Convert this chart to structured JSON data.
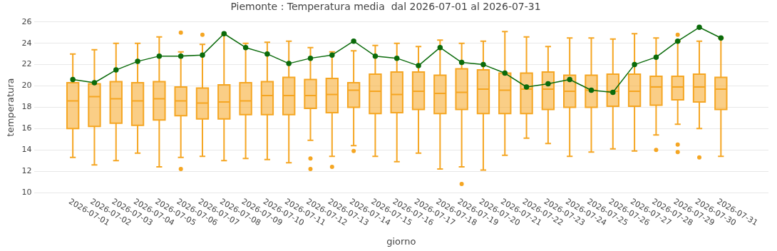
{
  "chart_data": {
    "type": "box",
    "title": "Piemonte : Temperatura media  dal 2026-07-01 al 2026-07-31",
    "xlabel": "giorno",
    "ylabel": "temperatura",
    "categories": [
      "2026-07-01",
      "2026-07-02",
      "2026-07-03",
      "2026-07-04",
      "2026-07-05",
      "2026-07-06",
      "2026-07-07",
      "2026-07-08",
      "2026-07-09",
      "2026-07-10",
      "2026-07-11",
      "2026-07-12",
      "2026-07-13",
      "2026-07-14",
      "2026-07-15",
      "2026-07-16",
      "2026-07-17",
      "2026-07-18",
      "2026-07-19",
      "2026-07-20",
      "2026-07-21",
      "2026-07-22",
      "2026-07-23",
      "2026-07-24",
      "2026-07-25",
      "2026-07-26",
      "2026-07-27",
      "2026-07-28",
      "2026-07-29",
      "2026-07-30",
      "2026-07-31"
    ],
    "series": [
      {
        "type": "box",
        "color": "#f5a623",
        "boxes": [
          {
            "low": 13.3,
            "q1": 16.0,
            "median": 18.6,
            "q3": 20.3,
            "high": 23.0
          },
          {
            "low": 12.6,
            "q1": 16.2,
            "median": 19.0,
            "q3": 20.2,
            "high": 23.4
          },
          {
            "low": 13.0,
            "q1": 16.5,
            "median": 18.8,
            "q3": 20.4,
            "high": 24.0
          },
          {
            "low": 13.7,
            "q1": 16.3,
            "median": 18.6,
            "q3": 20.3,
            "high": 24.0
          },
          {
            "low": 12.4,
            "q1": 16.8,
            "median": 18.8,
            "q3": 20.4,
            "high": 24.6
          },
          {
            "low": 13.3,
            "q1": 17.2,
            "median": 18.6,
            "q3": 19.9,
            "high": 23.2,
            "outliers": [
              25.0,
              12.2
            ]
          },
          {
            "low": 13.4,
            "q1": 16.9,
            "median": 18.4,
            "q3": 19.8,
            "high": 23.9,
            "outliers": [
              24.8
            ]
          },
          {
            "low": 13.0,
            "q1": 16.9,
            "median": 18.5,
            "q3": 20.1,
            "high": 24.8
          },
          {
            "low": 13.2,
            "q1": 17.3,
            "median": 18.6,
            "q3": 20.3,
            "high": 24.0
          },
          {
            "low": 13.1,
            "q1": 17.3,
            "median": 19.1,
            "q3": 20.4,
            "high": 24.1
          },
          {
            "low": 12.8,
            "q1": 17.3,
            "median": 19.1,
            "q3": 20.8,
            "high": 24.2
          },
          {
            "low": 14.9,
            "q1": 17.9,
            "median": 19.1,
            "q3": 20.6,
            "high": 23.6,
            "outliers": [
              13.2,
              12.2
            ]
          },
          {
            "low": 13.4,
            "q1": 17.5,
            "median": 19.2,
            "q3": 20.7,
            "high": 23.2,
            "outliers": [
              12.4
            ]
          },
          {
            "low": 14.4,
            "q1": 18.0,
            "median": 19.6,
            "q3": 20.3,
            "high": 23.3,
            "outliers": [
              13.9
            ]
          },
          {
            "low": 13.4,
            "q1": 17.4,
            "median": 19.5,
            "q3": 21.1,
            "high": 23.8
          },
          {
            "low": 12.9,
            "q1": 17.5,
            "median": 19.2,
            "q3": 21.3,
            "high": 24.0
          },
          {
            "low": 13.7,
            "q1": 17.8,
            "median": 19.5,
            "q3": 21.3,
            "high": 23.7
          },
          {
            "low": 12.2,
            "q1": 17.4,
            "median": 19.3,
            "q3": 21.0,
            "high": 24.3
          },
          {
            "low": 12.4,
            "q1": 17.8,
            "median": 19.4,
            "q3": 21.6,
            "high": 24.0,
            "outliers": [
              10.8
            ]
          },
          {
            "low": 12.1,
            "q1": 17.4,
            "median": 19.7,
            "q3": 21.5,
            "high": 24.2
          },
          {
            "low": 13.5,
            "q1": 17.4,
            "median": 19.6,
            "q3": 21.2,
            "high": 25.1
          },
          {
            "low": 15.1,
            "q1": 17.4,
            "median": 19.7,
            "q3": 21.2,
            "high": 24.6
          },
          {
            "low": 14.6,
            "q1": 17.8,
            "median": 19.7,
            "q3": 21.3,
            "high": 23.7
          },
          {
            "low": 13.4,
            "q1": 18.0,
            "median": 19.5,
            "q3": 21.0,
            "high": 24.5
          },
          {
            "low": 13.8,
            "q1": 18.0,
            "median": 19.6,
            "q3": 21.0,
            "high": 24.5
          },
          {
            "low": 14.1,
            "q1": 18.1,
            "median": 19.5,
            "q3": 21.1,
            "high": 24.4
          },
          {
            "low": 13.9,
            "q1": 18.1,
            "median": 19.5,
            "q3": 21.1,
            "high": 24.9
          },
          {
            "low": 15.4,
            "q1": 18.2,
            "median": 19.9,
            "q3": 20.9,
            "high": 24.5,
            "outliers": [
              14.0
            ]
          },
          {
            "low": 16.4,
            "q1": 18.7,
            "median": 19.9,
            "q3": 20.9,
            "high": 24.2,
            "outliers": [
              24.8,
              14.5,
              13.8
            ]
          },
          {
            "low": 16.0,
            "q1": 18.5,
            "median": 19.9,
            "q3": 21.1,
            "high": 24.2,
            "outliers": [
              13.3
            ]
          },
          {
            "low": 13.4,
            "q1": 17.8,
            "median": 19.7,
            "q3": 20.8,
            "high": 24.5
          }
        ]
      },
      {
        "type": "line",
        "color": "#0b6b0b",
        "values": [
          20.6,
          20.3,
          21.5,
          22.3,
          22.8,
          22.8,
          22.9,
          24.9,
          23.6,
          23.0,
          22.1,
          22.6,
          22.9,
          24.2,
          22.8,
          22.6,
          21.9,
          23.6,
          22.2,
          22.0,
          21.2,
          19.9,
          20.2,
          20.6,
          19.6,
          19.4,
          22.0,
          22.7,
          24.2,
          25.5,
          24.5
        ]
      }
    ],
    "marker": "circle",
    "line_style": "solid",
    "grid": "y",
    "legend": false,
    "ylim": [
      10,
      26
    ],
    "yticks": [
      10,
      12,
      14,
      16,
      18,
      20,
      22,
      24,
      26
    ]
  }
}
